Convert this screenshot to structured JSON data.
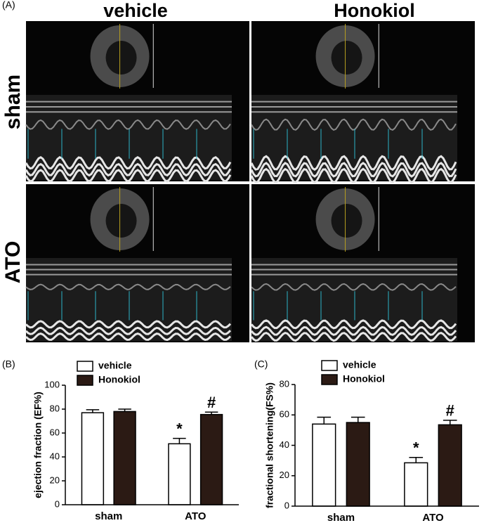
{
  "figure": {
    "panel_labels": [
      "(A)",
      "(B)",
      "(C)"
    ],
    "columns": [
      "vehicle",
      "Honokiol"
    ],
    "rows": [
      "sham",
      "ATO"
    ]
  },
  "chart_data": [
    {
      "type": "bar",
      "ylabel": "ejection fraction (EF%)",
      "categories": [
        "sham",
        "ATO"
      ],
      "series": [
        {
          "name": "vehicle",
          "color": "#ffffff",
          "values": [
            77,
            51
          ],
          "errors": [
            2.5,
            4.5
          ],
          "annotations": [
            null,
            "*"
          ]
        },
        {
          "name": "Honokiol",
          "color": "#2b1a14",
          "values": [
            78,
            75.5
          ],
          "errors": [
            2,
            2
          ],
          "annotations": [
            null,
            "#"
          ]
        }
      ],
      "ylim": [
        0,
        100
      ],
      "yticks": [
        0,
        20,
        40,
        60,
        80,
        100
      ],
      "legend": "top-left"
    },
    {
      "type": "bar",
      "ylabel": "fractional shortening(FS%)",
      "categories": [
        "sham",
        "ATO"
      ],
      "series": [
        {
          "name": "vehicle",
          "color": "#ffffff",
          "values": [
            54,
            28.5
          ],
          "errors": [
            4.5,
            3.5
          ],
          "annotations": [
            null,
            "*"
          ]
        },
        {
          "name": "Honokiol",
          "color": "#2b1a14",
          "values": [
            55,
            53.5
          ],
          "errors": [
            3.5,
            3
          ],
          "annotations": [
            null,
            "#"
          ]
        }
      ],
      "ylim": [
        0,
        80
      ],
      "yticks": [
        0,
        20,
        40,
        60,
        80
      ],
      "legend": "top-left"
    }
  ]
}
